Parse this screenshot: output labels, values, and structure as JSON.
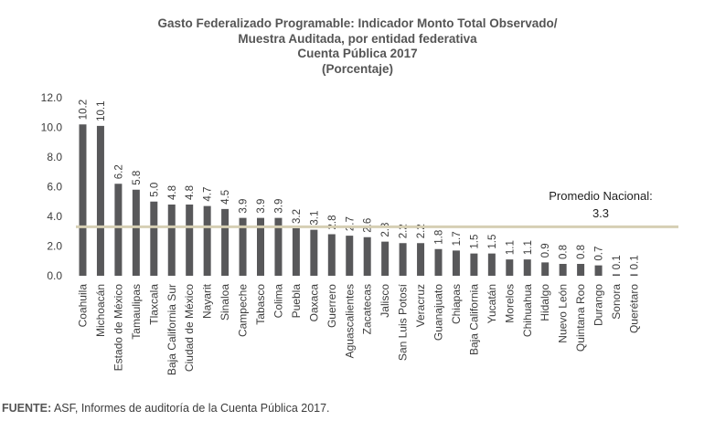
{
  "chart_data": {
    "type": "bar",
    "title_lines": [
      "Gasto Federalizado Programable: Indicador Monto Total Observado/",
      "Muestra Auditada, por entidad federativa",
      "Cuenta Pública 2017",
      "(Porcentaje)"
    ],
    "categories": [
      "Coahuila",
      "Michoacán",
      "Estado de México",
      "Tamaulipas",
      "Tlaxcala",
      "Baja California Sur",
      "Ciudad de México",
      "Nayarit",
      "Sinaloa",
      "Campeche",
      "Tabasco",
      "Colima",
      "Puebla",
      "Oaxaca",
      "Guerrero",
      "Aguascalientes",
      "Zacatecas",
      "Jalisco",
      "San Luis Potosí",
      "Veracruz",
      "Guanajuato",
      "Chiapas",
      "Baja California",
      "Yucatán",
      "Morelos",
      "Chihuahua",
      "Hidalgo",
      "Nuevo León",
      "Quintana Roo",
      "Durango",
      "Sonora",
      "Querétaro"
    ],
    "values": [
      10.2,
      10.1,
      6.2,
      5.8,
      5.0,
      4.8,
      4.8,
      4.7,
      4.5,
      3.9,
      3.9,
      3.9,
      3.2,
      3.1,
      2.8,
      2.7,
      2.6,
      2.3,
      2.2,
      2.2,
      1.8,
      1.7,
      1.5,
      1.5,
      1.1,
      1.1,
      0.9,
      0.8,
      0.8,
      0.7,
      0.1,
      0.1
    ],
    "value_labels": [
      "10.2",
      "10.1",
      "6.2",
      "5.8",
      "5.0",
      "4.8",
      "4.8",
      "4.7",
      "4.5",
      "3.9",
      "3.9",
      "3.9",
      "3.2",
      "3.1",
      "2.8",
      "2.7",
      "2.6",
      "2.3",
      "2.2",
      "2.2",
      "1.8",
      "1.7",
      "1.5",
      "1.5",
      "1.1",
      "1.1",
      "0.9",
      "0.8",
      "0.8",
      "0.7",
      "0.1",
      "0.1"
    ],
    "y_ticks": [
      "0.0",
      "2.0",
      "4.0",
      "6.0",
      "8.0",
      "10.0",
      "12.0"
    ],
    "ylim": [
      0,
      12
    ],
    "reference_line": {
      "label_line1": "Promedio Nacional:",
      "label_line2": "3.3",
      "value": 3.3
    },
    "colors": {
      "bar": "#58585a",
      "average_line": "#d6cfb4",
      "text": "#3c3c3c",
      "title": "#555555"
    }
  },
  "footer": {
    "label": "FUENTE:",
    "text": " ASF, Informes de auditoría de la Cuenta Pública 2017."
  }
}
